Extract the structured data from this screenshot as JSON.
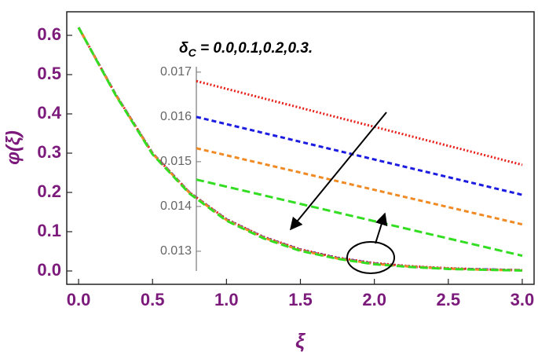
{
  "chart_data": [
    {
      "type": "line",
      "xlabel": "ξ",
      "ylabel": "φ(ξ)",
      "x": [
        0,
        0.25,
        0.5,
        0.75,
        1.0,
        1.25,
        1.5,
        1.75,
        2.0,
        2.25,
        2.5,
        2.75,
        3.0
      ],
      "series": [
        {
          "color": "#e8201a",
          "style": "dotted",
          "values": [
            0.62,
            0.45,
            0.3,
            0.2,
            0.132,
            0.087,
            0.055,
            0.034,
            0.02,
            0.012,
            0.007,
            0.004,
            0.002
          ]
        },
        {
          "color": "#1c1ce0",
          "style": "dashed",
          "values": [
            0.62,
            0.45,
            0.3,
            0.2,
            0.131,
            0.086,
            0.054,
            0.033,
            0.019,
            0.011,
            0.006,
            0.004,
            0.002
          ]
        },
        {
          "color": "#f08a24",
          "style": "dashed",
          "values": [
            0.62,
            0.449,
            0.299,
            0.199,
            0.13,
            0.085,
            0.053,
            0.032,
            0.018,
            0.011,
            0.006,
            0.003,
            0.002
          ]
        },
        {
          "color": "#33dd22",
          "style": "longdash",
          "values": [
            0.62,
            0.448,
            0.297,
            0.197,
            0.128,
            0.083,
            0.051,
            0.031,
            0.017,
            0.01,
            0.005,
            0.003,
            0.001
          ]
        }
      ],
      "xlim": [
        -0.08,
        3.08
      ],
      "ylim": [
        -0.034,
        0.66
      ],
      "xticks": [
        {
          "value": 0,
          "label": "0.0"
        },
        0.5,
        {
          "value": 1,
          "label": "1.0"
        },
        1.5,
        {
          "value": 2,
          "label": "2.0"
        },
        2.5,
        {
          "value": 3,
          "label": "3.0"
        }
      ],
      "yticks": [
        {
          "value": 0,
          "label": "0.0"
        },
        0.1,
        0.2,
        0.3,
        0.4,
        0.5,
        0.6
      ]
    },
    {
      "type": "line",
      "annotation": {
        "symbol": "δ",
        "subscript": "C",
        "text": " = 0.0,0.1,0.2,0.3."
      },
      "x": [
        0.8,
        3.0
      ],
      "series": [
        {
          "color": "#e8201a",
          "style": "dotted",
          "values": [
            0.0168,
            0.01493
          ]
        },
        {
          "color": "#1c1ce0",
          "style": "dashed",
          "values": [
            0.016,
            0.01426
          ]
        },
        {
          "color": "#f08a24",
          "style": "dashed",
          "values": [
            0.0153,
            0.0136
          ]
        },
        {
          "color": "#33dd22",
          "style": "longdash",
          "values": [
            0.0146,
            0.0129
          ]
        }
      ],
      "xlim": [
        0.8,
        3.0
      ],
      "ylim": [
        0.01256,
        0.01712
      ],
      "yticks": [
        0.013,
        0.014,
        0.015,
        0.016,
        0.017
      ]
    }
  ]
}
